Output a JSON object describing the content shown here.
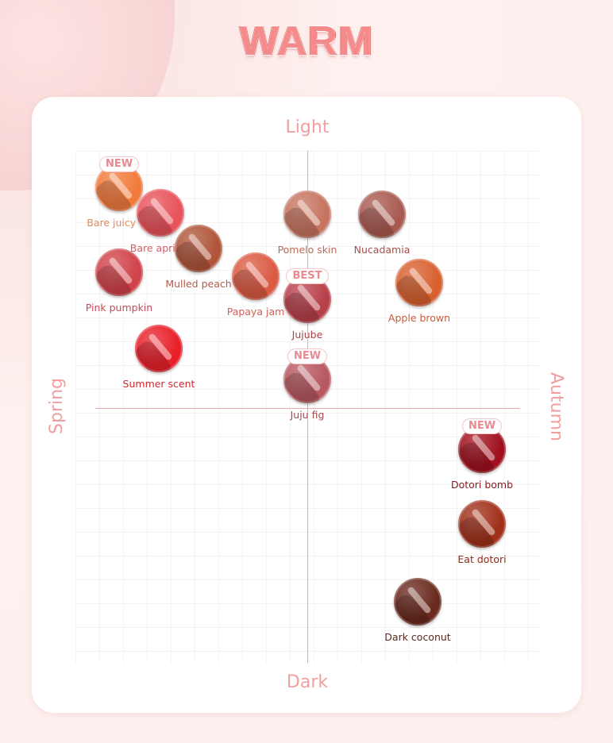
{
  "title": "WARM",
  "axes": {
    "top": "Light",
    "bottom": "Dark",
    "left": "Spring",
    "right": "Autumn"
  },
  "shades": [
    {
      "name": "Bare juicy oh",
      "color": "#f27a3c",
      "badge": "NEW",
      "label_color": "#e08a5c"
    },
    {
      "name": "Bare apricot",
      "color": "#e8525a",
      "badge": null,
      "label_color": "#d0606a"
    },
    {
      "name": "Mulled peach",
      "color": "#b0553a",
      "badge": null,
      "label_color": "#b45a4a"
    },
    {
      "name": "Pink pumpkin",
      "color": "#d0434a",
      "badge": null,
      "label_color": "#c84a56"
    },
    {
      "name": "Papaya jam",
      "color": "#db5a44",
      "badge": null,
      "label_color": "#d0605a"
    },
    {
      "name": "Pomelo skin",
      "color": "#c77560",
      "badge": null,
      "label_color": "#b86a5a"
    },
    {
      "name": "Nucadamia",
      "color": "#a85a50",
      "badge": null,
      "label_color": "#a45048"
    },
    {
      "name": "Jujube",
      "color": "#b8404a",
      "badge": "BEST",
      "label_color": "#a84048"
    },
    {
      "name": "Apple brown",
      "color": "#d8602f",
      "badge": null,
      "label_color": "#c85a3a"
    },
    {
      "name": "Summer scent",
      "color": "#e8202a",
      "badge": null,
      "label_color": "#c82a30"
    },
    {
      "name": "Juju fig",
      "color": "#b85860",
      "badge": "NEW",
      "label_color": "#a04a50"
    },
    {
      "name": "Dotori bomb",
      "color": "#a0101e",
      "badge": "NEW",
      "label_color": "#8a1a22"
    },
    {
      "name": "Eat dotori",
      "color": "#a0301a",
      "badge": null,
      "label_color": "#8a2a1a"
    },
    {
      "name": "Dark coconut",
      "color": "#6a2a1e",
      "badge": null,
      "label_color": "#5a2a1e"
    }
  ]
}
